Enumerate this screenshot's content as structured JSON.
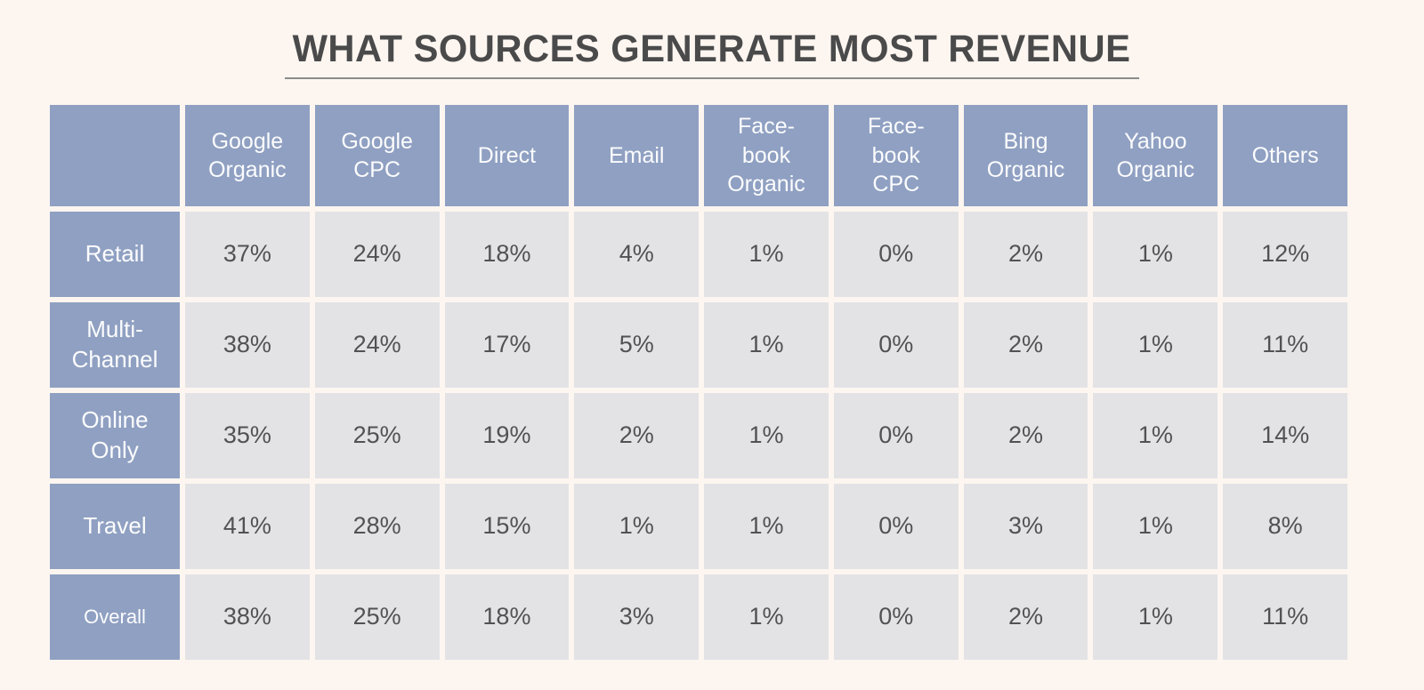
{
  "title": {
    "text": "WHAT SOURCES GENERATE MOST REVENUE"
  },
  "colors": {
    "page_background": "#FDF6F0",
    "header_cell": "#8FA0C2",
    "data_cell": "#E3E3E6",
    "header_text": "#FCFCFD",
    "data_text": "#525254",
    "title_text": "#4A4A4B",
    "title_underline": "#8C8C8C"
  },
  "table": {
    "corner": "",
    "headers": [
      "Google\nOrganic",
      "Google\nCPC",
      "Direct",
      "Email",
      "Face-\nbook\nOrganic",
      "Face-\nbook\nCPC",
      "Bing\nOrganic",
      "Yahoo\nOrganic",
      "Others"
    ],
    "rows": [
      {
        "label": "Retail",
        "values": [
          "37%",
          "24%",
          "18%",
          "4%",
          "1%",
          "0%",
          "2%",
          "1%",
          "12%"
        ]
      },
      {
        "label": "Multi-\nChannel",
        "values": [
          "38%",
          "24%",
          "17%",
          "5%",
          "1%",
          "0%",
          "2%",
          "1%",
          "11%"
        ]
      },
      {
        "label": "Online\nOnly",
        "values": [
          "35%",
          "25%",
          "19%",
          "2%",
          "1%",
          "0%",
          "2%",
          "1%",
          "14%"
        ]
      },
      {
        "label": "Travel",
        "values": [
          "41%",
          "28%",
          "15%",
          "1%",
          "1%",
          "0%",
          "3%",
          "1%",
          "8%"
        ]
      },
      {
        "label": "Overall",
        "values": [
          "38%",
          "25%",
          "18%",
          "3%",
          "1%",
          "0%",
          "2%",
          "1%",
          "11%"
        ]
      }
    ]
  },
  "chart_data": {
    "type": "table",
    "title": "WHAT SOURCES GENERATE MOST REVENUE",
    "columns": [
      "Google Organic",
      "Google CPC",
      "Direct",
      "Email",
      "Facebook Organic",
      "Facebook CPC",
      "Bing Organic",
      "Yahoo Organic",
      "Others"
    ],
    "row_labels": [
      "Retail",
      "Multi-Channel",
      "Online Only",
      "Travel",
      "Overall"
    ],
    "unit": "%",
    "values": [
      [
        37,
        24,
        18,
        4,
        1,
        0,
        2,
        1,
        12
      ],
      [
        38,
        24,
        17,
        5,
        1,
        0,
        2,
        1,
        11
      ],
      [
        35,
        25,
        19,
        2,
        1,
        0,
        2,
        1,
        14
      ],
      [
        41,
        28,
        15,
        1,
        1,
        0,
        3,
        1,
        8
      ],
      [
        38,
        25,
        18,
        3,
        1,
        0,
        2,
        1,
        11
      ]
    ]
  }
}
